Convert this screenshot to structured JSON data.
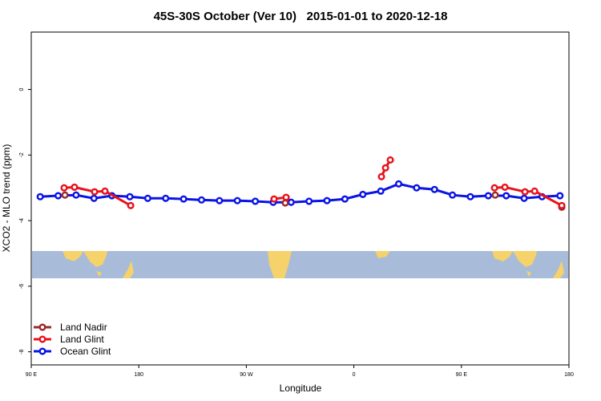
{
  "chart_data": {
    "type": "line",
    "title": "45S-30S October (Ver 10)   2015-01-01 to 2020-12-18",
    "xlabel": "Longitude",
    "ylabel": "XCO2 - MLO trend (ppm)",
    "xlim": [
      90,
      540
    ],
    "ylim": [
      -8.4,
      1.75
    ],
    "xticks": [
      {
        "value": 90,
        "label": "90 E"
      },
      {
        "value": 180,
        "label": "180"
      },
      {
        "value": 270,
        "label": "90 W"
      },
      {
        "value": 360,
        "label": "0"
      },
      {
        "value": 450,
        "label": "90 E"
      },
      {
        "value": 540,
        "label": "180"
      }
    ],
    "yticks": [
      0,
      -2,
      -4,
      -6,
      -8
    ],
    "legend": "bottom-left",
    "series": [
      {
        "name": "Land Nadir",
        "color": "#9b2a2a",
        "x": [
          118.2,
          null,
          302.6,
          null,
          478.3,
          null,
          534
        ],
        "values": [
          -3.22,
          null,
          -3.46,
          null,
          -3.22,
          null,
          -3.59
        ]
      },
      {
        "name": "Land Glint",
        "color": "#e8131b",
        "x": [
          117.5,
          126.2,
          143,
          151.7,
          173.2,
          null,
          293.2,
          303.3,
          null,
          383.1,
          386.5,
          390.5,
          null,
          477.7,
          486.4,
          503.2,
          511.3,
          534
        ],
        "values": [
          -3.0,
          -2.98,
          -3.12,
          -3.1,
          -3.54,
          null,
          -3.34,
          -3.29,
          null,
          -2.66,
          -2.39,
          -2.15,
          null,
          -3.0,
          -2.98,
          -3.12,
          -3.1,
          -3.54
        ]
      },
      {
        "name": "Ocean Glint",
        "color": "#0a14e6",
        "x": [
          97.5,
          112.5,
          127.5,
          142.5,
          157.5,
          172.5,
          187.5,
          202.5,
          217.5,
          232.5,
          247.5,
          262.5,
          277.5,
          292.5,
          307.5,
          322.5,
          337.5,
          352.5,
          367.5,
          382.5,
          397.5,
          412.5,
          427.5,
          442.5,
          457.5,
          472.5,
          487.5,
          502.5,
          517.5,
          532.5
        ],
        "values": [
          -3.27,
          -3.24,
          -3.22,
          -3.32,
          -3.24,
          -3.27,
          -3.32,
          -3.32,
          -3.34,
          -3.37,
          -3.39,
          -3.39,
          -3.41,
          -3.44,
          -3.44,
          -3.41,
          -3.39,
          -3.34,
          -3.2,
          -3.1,
          -2.88,
          -3.0,
          -3.05,
          -3.22,
          -3.27,
          -3.24,
          -3.24,
          -3.32,
          -3.27,
          -3.24
        ]
      }
    ]
  }
}
